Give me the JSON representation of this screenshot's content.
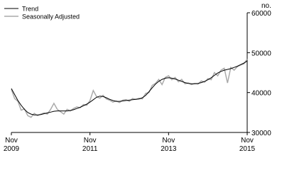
{
  "chart_data": {
    "type": "line",
    "y_axis_label": "no.",
    "categories": [
      "Nov 2009",
      null,
      null,
      null,
      null,
      null,
      null,
      null,
      null,
      null,
      null,
      null,
      null,
      null,
      null,
      null,
      null,
      null,
      null,
      null,
      null,
      null,
      null,
      null,
      "Nov 2011",
      null,
      null,
      null,
      null,
      null,
      null,
      null,
      null,
      null,
      null,
      null,
      null,
      null,
      null,
      null,
      null,
      null,
      null,
      null,
      null,
      null,
      null,
      null,
      "Nov 2013",
      null,
      null,
      null,
      null,
      null,
      null,
      null,
      null,
      null,
      null,
      null,
      null,
      null,
      null,
      null,
      null,
      null,
      null,
      null,
      null,
      null,
      null,
      null,
      "Nov 2015"
    ],
    "series": [
      {
        "name": "Trend",
        "color": "#000000",
        "values": [
          41000,
          39500,
          38000,
          36800,
          35800,
          35000,
          34600,
          34400,
          34400,
          34500,
          34700,
          34900,
          35100,
          35300,
          35400,
          35400,
          35400,
          35400,
          35500,
          35700,
          36000,
          36300,
          36700,
          37100,
          37600,
          38200,
          38800,
          39100,
          39000,
          38700,
          38300,
          38000,
          37800,
          37800,
          37900,
          38000,
          38100,
          38200,
          38300,
          38400,
          38700,
          39300,
          40200,
          41200,
          42100,
          42800,
          43300,
          43600,
          43700,
          43600,
          43400,
          43100,
          42800,
          42500,
          42300,
          42200,
          42200,
          42300,
          42500,
          42800,
          43200,
          43700,
          44300,
          44900,
          45300,
          45600,
          45800,
          46000,
          46300,
          46600,
          47000,
          47400,
          47900
        ]
      },
      {
        "name": "Seasonally Adjusted",
        "color": "#aaaaaa",
        "values": [
          40800,
          38500,
          37800,
          35600,
          35900,
          34200,
          33800,
          34800,
          34200,
          34600,
          34900,
          34600,
          35800,
          37300,
          35800,
          35200,
          34600,
          35800,
          35400,
          36000,
          36400,
          36200,
          37000,
          36800,
          38000,
          40500,
          39000,
          38600,
          39300,
          38400,
          38100,
          37600,
          37900,
          37500,
          38100,
          38200,
          37800,
          38500,
          38300,
          38600,
          38400,
          39800,
          40000,
          41800,
          42300,
          43300,
          42000,
          43800,
          44200,
          43200,
          43800,
          42700,
          43300,
          42200,
          42400,
          42000,
          42300,
          42100,
          42900,
          42600,
          43500,
          43200,
          45000,
          44200,
          45600,
          46100,
          42400,
          46300,
          45600,
          46500,
          46900,
          47200,
          48400
        ]
      }
    ],
    "ylim": [
      30000,
      60000
    ],
    "yticks": [
      30000,
      40000,
      50000,
      60000
    ]
  }
}
